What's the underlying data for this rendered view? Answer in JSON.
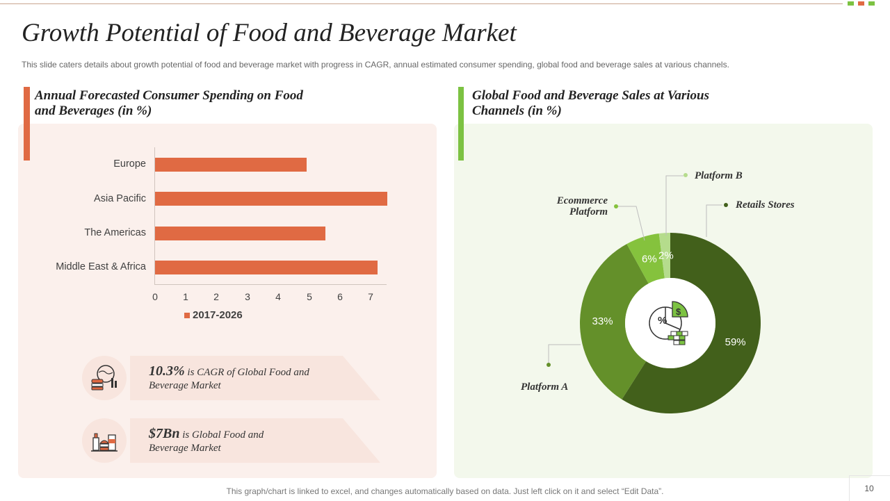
{
  "header": {
    "title": "Growth Potential of Food and Beverage Market",
    "subtitle": "This slide caters details about growth potential of food and beverage  market with progress in CAGR, annual estimated consumer spending, global food and beverage  sales at various  channels."
  },
  "left": {
    "section_title_line1": "Annual Forecasted Consumer Spending on Food",
    "section_title_line2": "and Beverages (in %)"
  },
  "right": {
    "section_title_line1": "Global Food and Beverage Sales at Various",
    "section_title_line2": "Channels (in %)"
  },
  "stats": [
    {
      "value": "10.3%",
      "text_line1": " is CAGR of Global Food and",
      "text_line2": "Beverage Market"
    },
    {
      "value": "$7Bn",
      "text_line1": " is Global Food and",
      "text_line2": "Beverage Market"
    }
  ],
  "chart_data": [
    {
      "type": "bar",
      "orientation": "horizontal",
      "title": "Annual Forecasted Consumer Spending on Food and Beverages (in %)",
      "categories": [
        "Europe",
        "Asia Pacific",
        "The Americas",
        "Middle East & Africa"
      ],
      "series": [
        {
          "name": "2017-2026",
          "values": [
            4.9,
            7.5,
            5.5,
            7.2
          ]
        }
      ],
      "xlim": [
        0,
        7.5
      ],
      "xticks": [
        "0",
        "1",
        "2",
        "3",
        "4",
        "5",
        "6",
        "7"
      ],
      "legend": "bottom"
    },
    {
      "type": "pie",
      "subtype": "donut",
      "title": "Global Food and Beverage Sales at Various Channels (in %)",
      "slices": [
        {
          "name": "Retails Stores",
          "value": 59,
          "label": "59%",
          "color": "#42601b"
        },
        {
          "name": "Platform A",
          "value": 33,
          "label": "33%",
          "color": "#64902a"
        },
        {
          "name": "Ecommerce Platform",
          "value": 6,
          "label": "6%",
          "color": "#85c23d"
        },
        {
          "name": "Platform B",
          "value": 2,
          "label": "2%",
          "color": "#b5dc8c"
        }
      ],
      "callouts": {
        "platform_b": "Platform B",
        "ecommerce_line1": "Ecommerce",
        "ecommerce_line2": "Platform",
        "retail": "Retails Stores",
        "platform_a": "Platform A"
      }
    }
  ],
  "colors": {
    "bar": "#e06a43",
    "accent_left": "#e06a43",
    "accent_right": "#7cc242",
    "square_green": "#7cc242",
    "square_orange": "#e06a43"
  },
  "icons": {
    "stat1": "food-globe-icon",
    "stat2": "grocery-icon",
    "donut_center": "pie-percent-money-icon"
  },
  "footer": {
    "note": "This graph/chart is linked to excel, and changes automatically based on data. Just left click on it and select “Edit Data”.",
    "page": "10"
  }
}
